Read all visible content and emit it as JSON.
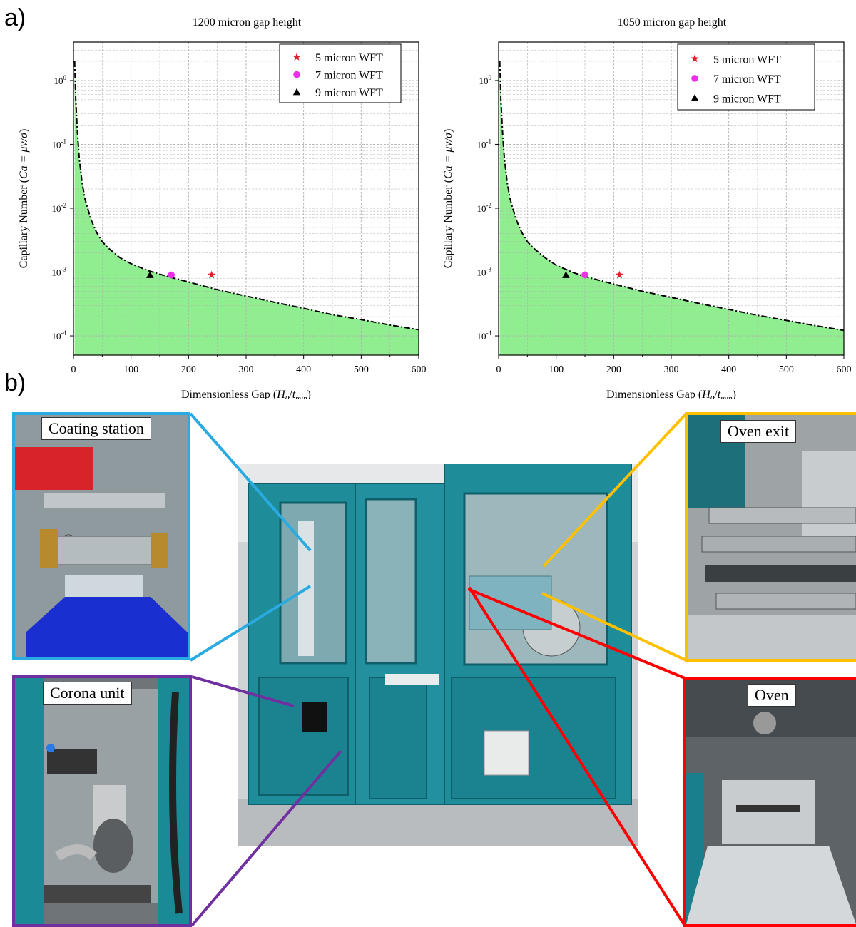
{
  "panel_labels": {
    "a": "a)",
    "b": "b)"
  },
  "colors": {
    "feasible_fill": "#90ee90",
    "boundary_line": "#000000",
    "wft_5": "#e0202a",
    "wft_7": "#ee2ee8",
    "wft_9": "#000000",
    "coating_frame": "#29abe2",
    "corona_frame": "#7030a0",
    "oven_exit_frame": "#ffc000",
    "oven_frame": "#ff0000",
    "machine_body": "#1f8c9a"
  },
  "chart_data": [
    {
      "type": "area",
      "title": "1200 micron gap height",
      "xlabel": "Dimensionless Gap (H0/tmin)",
      "ylabel": "Capillary Number (Ca = μv/σ)",
      "xlim": [
        0,
        600
      ],
      "ylim": [
        5e-05,
        4
      ],
      "y_scale": "log",
      "grid": true,
      "legend_position": "top-right",
      "x_ticks": [
        0,
        100,
        200,
        300,
        400,
        500,
        600
      ],
      "y_ticks": [
        0.0001,
        0.001,
        0.01,
        0.1,
        1
      ],
      "y_tick_labels": [
        {
          "base": "10",
          "exp": "-4"
        },
        {
          "base": "10",
          "exp": "-3"
        },
        {
          "base": "10",
          "exp": "-2"
        },
        {
          "base": "10",
          "exp": "-1"
        },
        {
          "base": "10",
          "exp": "0"
        }
      ],
      "boundary": {
        "x": [
          2,
          4,
          7,
          10,
          15,
          20,
          30,
          40,
          50,
          60,
          80,
          100,
          130,
          170,
          200,
          250,
          300,
          350,
          400,
          450,
          500,
          550,
          600
        ],
        "y": [
          2,
          0.5,
          0.15,
          0.06,
          0.025,
          0.014,
          0.0068,
          0.0042,
          0.003,
          0.0024,
          0.0017,
          0.00135,
          0.00105,
          0.00082,
          0.0007,
          0.00053,
          0.00042,
          0.000335,
          0.00027,
          0.000215,
          0.00018,
          0.000148,
          0.000125
        ]
      },
      "series": [
        {
          "name": "5 micron WFT",
          "marker": "star",
          "x": [
            240
          ],
          "y": [
            0.0009
          ]
        },
        {
          "name": "7 micron WFT",
          "marker": "circle",
          "x": [
            170
          ],
          "y": [
            0.0009
          ]
        },
        {
          "name": "9 micron WFT",
          "marker": "triangle",
          "x": [
            133
          ],
          "y": [
            0.0009
          ]
        }
      ]
    },
    {
      "type": "area",
      "title": "1050 micron gap height",
      "xlabel": "Dimensionless Gap (H0/tmin)",
      "ylabel": "Capillary Number (Ca = μv/σ)",
      "xlim": [
        0,
        600
      ],
      "ylim": [
        5e-05,
        4
      ],
      "y_scale": "log",
      "grid": true,
      "legend_position": "top-right",
      "x_ticks": [
        0,
        100,
        200,
        300,
        400,
        500,
        600
      ],
      "y_ticks": [
        0.0001,
        0.001,
        0.01,
        0.1,
        1
      ],
      "y_tick_labels": [
        {
          "base": "10",
          "exp": "-4"
        },
        {
          "base": "10",
          "exp": "-3"
        },
        {
          "base": "10",
          "exp": "-2"
        },
        {
          "base": "10",
          "exp": "-1"
        },
        {
          "base": "10",
          "exp": "0"
        }
      ],
      "boundary": {
        "x": [
          2,
          4,
          7,
          10,
          15,
          20,
          30,
          40,
          50,
          60,
          80,
          100,
          130,
          150,
          200,
          250,
          300,
          350,
          400,
          450,
          500,
          550,
          600
        ],
        "y": [
          2,
          0.5,
          0.15,
          0.06,
          0.025,
          0.014,
          0.0068,
          0.0042,
          0.003,
          0.0024,
          0.0017,
          0.00128,
          0.00098,
          0.00085,
          0.00065,
          0.0005,
          0.0004,
          0.00032,
          0.00026,
          0.00021,
          0.000175,
          0.000145,
          0.000122
        ]
      },
      "series": [
        {
          "name": "5 micron WFT",
          "marker": "star",
          "x": [
            210
          ],
          "y": [
            0.0009
          ]
        },
        {
          "name": "7 micron WFT",
          "marker": "circle",
          "x": [
            150
          ],
          "y": [
            0.0009
          ]
        },
        {
          "name": "9 micron WFT",
          "marker": "triangle",
          "x": [
            117
          ],
          "y": [
            0.0009
          ]
        }
      ]
    }
  ],
  "photos": {
    "coating_station": {
      "label": "Coating station"
    },
    "corona_unit": {
      "label": "Corona unit"
    },
    "oven_exit": {
      "label": "Oven exit"
    },
    "oven": {
      "label": "Oven"
    }
  }
}
